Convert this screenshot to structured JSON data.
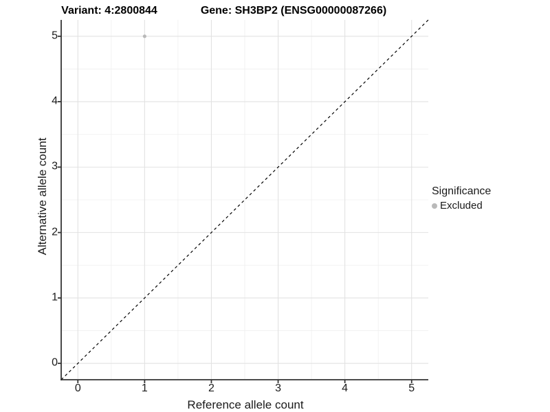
{
  "titles": {
    "variant": "Variant: 4:2800844",
    "gene": "Gene: SH3BP2 (ENSG00000087266)"
  },
  "axes": {
    "x": {
      "label": "Reference allele count",
      "tick_labels": [
        "0",
        "1",
        "2",
        "3",
        "4",
        "5"
      ]
    },
    "y": {
      "label": "Alternative allele count",
      "tick_labels": [
        "0",
        "1",
        "2",
        "3",
        "4",
        "5"
      ]
    }
  },
  "legend": {
    "title": "Significance",
    "items": [
      {
        "label": "Excluded",
        "color": "#b9b9b9"
      }
    ]
  },
  "colors": {
    "background": "#ffffff",
    "grid_major": "#e2e2e2",
    "grid_minor": "#efefef",
    "axis_line": "#333333",
    "text": "#1a1a1a",
    "excluded_point": "#b9b9b9",
    "reference_line": "#000000"
  },
  "chart_data": {
    "type": "scatter",
    "title": "Variant: 4:2800844 / Gene: SH3BP2 (ENSG00000087266)",
    "xlabel": "Reference allele count",
    "ylabel": "Alternative allele count",
    "xlim": [
      -0.25,
      5.25
    ],
    "ylim": [
      -0.25,
      5.25
    ],
    "xticks": [
      0,
      1,
      2,
      3,
      4,
      5
    ],
    "yticks": [
      0,
      1,
      2,
      3,
      4,
      5
    ],
    "grid": "major and minor gridlines, white panel",
    "legend_position": "right-middle",
    "series": [
      {
        "name": "Excluded",
        "color": "#b9b9b9",
        "marker_radius": 2.6,
        "points": [
          {
            "x": 1,
            "y": 5
          }
        ]
      }
    ],
    "reference_line": {
      "type": "identity",
      "slope": 1,
      "intercept": 0,
      "style": "dashed",
      "color": "#000000"
    }
  }
}
